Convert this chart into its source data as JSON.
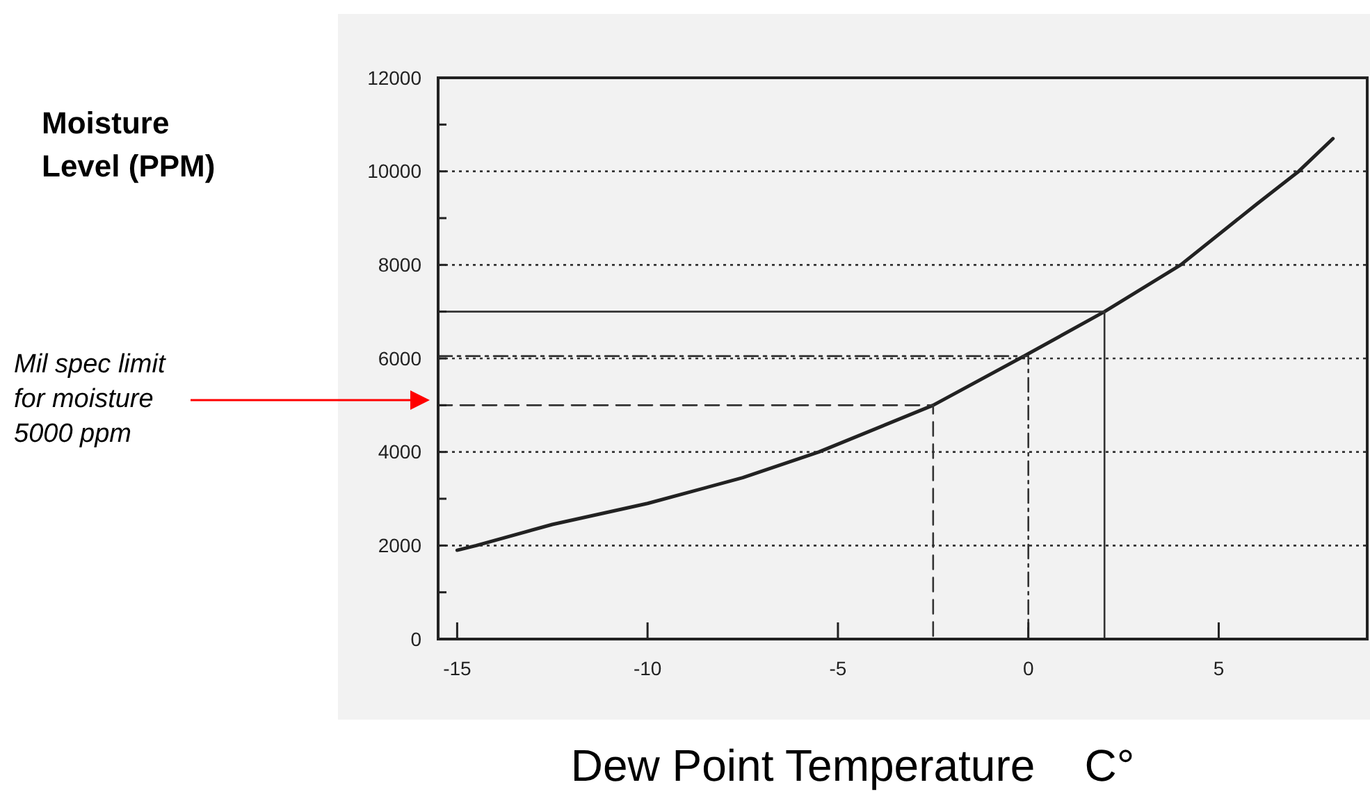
{
  "chart_data": {
    "type": "line",
    "xlabel": "Dew Point Temperature    C°",
    "ylabel": "Moisture Level (PPM)",
    "xlim": [
      -15.5,
      8.9
    ],
    "ylim": [
      0,
      12000
    ],
    "xticks": [
      -15,
      -10,
      -5,
      0,
      5
    ],
    "yticks": [
      0,
      {
        "value": 1000,
        "label": null
      },
      2000,
      {
        "value": 3000,
        "label": null
      },
      4000,
      {
        "value": 5000,
        "label": null
      },
      6000,
      {
        "value": 7000,
        "label": null
      },
      8000,
      {
        "value": 9000,
        "label": null
      },
      10000,
      {
        "value": 11000,
        "label": null
      },
      12000
    ],
    "grid": "y",
    "marker": "none",
    "line_style": "solid",
    "series": [
      {
        "color": "#222222",
        "x": [
          -15,
          -14.5,
          -12.5,
          -10,
          -7.5,
          -5.5,
          -2.5,
          0,
          2,
          4,
          6,
          7.1,
          8
        ],
        "values": [
          1900,
          2000,
          2450,
          2900,
          3450,
          4000,
          5000,
          6100,
          7000,
          8000,
          9300,
          10000,
          10700
        ]
      },
      {
        "color": "#333333",
        "line_style": "dashed",
        "x": [
          -15.5,
          -2.5,
          -2.5
        ],
        "values": [
          5000,
          5000,
          0
        ]
      },
      {
        "color": "#333333",
        "line_style": "dashdot",
        "x": [
          -15.5,
          0,
          0
        ],
        "values": [
          6050,
          6050,
          0
        ]
      },
      {
        "color": "#333333",
        "line_style": "solid",
        "x": [
          -15.5,
          2,
          2
        ],
        "values": [
          7000,
          7000,
          0
        ]
      }
    ],
    "annotations": [
      "Mil spec limit\nfor moisture\n5000 ppm"
    ]
  }
}
